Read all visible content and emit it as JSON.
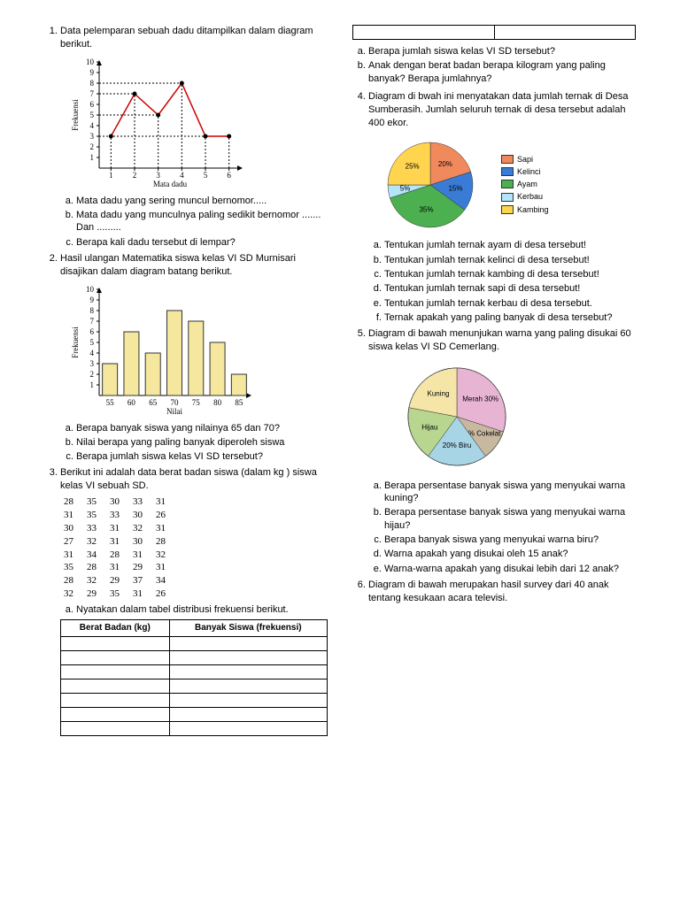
{
  "q1": {
    "text": "Data pelemparan sebuah dadu ditampilkan dalam diagram berikut.",
    "chart": {
      "type": "line",
      "xlabel": "Mata dadu",
      "ylabel": "Frekuensi",
      "xticks": [
        1,
        2,
        3,
        4,
        5,
        6
      ],
      "yticks": [
        1,
        2,
        3,
        4,
        5,
        6,
        7,
        8,
        9,
        10
      ],
      "ylim": [
        0,
        10
      ],
      "points": [
        [
          1,
          3
        ],
        [
          2,
          7
        ],
        [
          3,
          5
        ],
        [
          4,
          8
        ],
        [
          5,
          3
        ],
        [
          6,
          3
        ]
      ],
      "line_color": "#cc0000",
      "marker_color": "#000000",
      "grid_dash": true
    },
    "sub": {
      "a": "Mata dadu yang sering muncul bernomor.....",
      "b": "Mata dadu yang munculnya paling sedikit bernomor ....... Dan .........",
      "c": "Berapa kali dadu tersebut di lempar?"
    }
  },
  "q2": {
    "text": "Hasil ulangan Matematika siswa kelas VI SD Murnisari disajikan dalam diagram batang berikut.",
    "chart": {
      "type": "bar",
      "xlabel": "Nilai",
      "ylabel": "Frekuensi",
      "categories": [
        55,
        60,
        65,
        70,
        75,
        80,
        85
      ],
      "values": [
        3,
        6,
        4,
        8,
        7,
        5,
        2
      ],
      "ylim": [
        0,
        10
      ],
      "ytick_step": 1,
      "bar_color": "#f5e79e",
      "bar_border": "#333"
    },
    "sub": {
      "a": "Berapa banyak siswa yang nilainya 65 dan 70?",
      "b": "Nilai berapa yang paling banyak diperoleh siswa",
      "c": "Berapa jumlah siswa kelas VI SD tersebut?"
    }
  },
  "q3": {
    "text": "Berikut ini adalah data berat badan siswa (dalam kg ) siswa kelas VI sebuah SD.",
    "data_rows": [
      [
        28,
        35,
        30,
        33,
        31
      ],
      [
        31,
        35,
        33,
        30,
        26
      ],
      [
        30,
        33,
        31,
        32,
        31
      ],
      [
        27,
        32,
        31,
        30,
        28
      ],
      [
        31,
        34,
        28,
        31,
        32
      ],
      [
        35,
        28,
        31,
        29,
        31
      ],
      [
        28,
        32,
        29,
        37,
        34
      ],
      [
        32,
        29,
        35,
        31,
        26
      ]
    ],
    "sub_a": "Nyatakan dalam tabel distribusi frekuensi berikut.",
    "table_headers": {
      "c1": "Berat Badan (kg)",
      "c2": "Banyak Siswa (frekuensi)"
    },
    "empty_rows": 7,
    "cont_sub": {
      "a": "Berapa jumlah siswa kelas VI SD tersebut?",
      "b": "Anak dengan berat badan berapa kilogram yang paling banyak? Berapa jumlahnya?"
    }
  },
  "q4": {
    "text": "Diagram di bwah ini menyatakan data jumlah ternak di Desa Sumberasih. Jumlah seluruh ternak di desa tersebut adalah 400 ekor.",
    "pie": {
      "type": "pie",
      "slices": [
        {
          "label": "Sapi",
          "pct": 20,
          "color": "#f08a5d",
          "text": "20%"
        },
        {
          "label": "Kelinci",
          "pct": 15,
          "color": "#3a7bd5",
          "text": "15%"
        },
        {
          "label": "Ayam",
          "pct": 35,
          "color": "#4caf50",
          "text": "35%"
        },
        {
          "label": "Kerbau",
          "pct": 5,
          "color": "#b3e5fc",
          "text": "5%"
        },
        {
          "label": "Kambing",
          "pct": 25,
          "color": "#ffd54f",
          "text": "25%"
        }
      ],
      "legend": [
        {
          "label": "Sapi",
          "color": "#f08a5d"
        },
        {
          "label": "Kelinci",
          "color": "#3a7bd5"
        },
        {
          "label": "Ayam",
          "color": "#4caf50"
        },
        {
          "label": "Kerbau",
          "color": "#b3e5fc"
        },
        {
          "label": "Kambing",
          "color": "#ffd54f"
        }
      ]
    },
    "sub": {
      "a": "Tentukan jumlah ternak ayam di desa tersebut!",
      "b": "Tentukan jumlah ternak kelinci di desa tersebut!",
      "c": "Tentukan jumlah ternak kambing di desa tersebut!",
      "d": "Tentukan jumlah ternak sapi di desa tersebut!",
      "e": "Tentukan jumlah ternak kerbau di desa tersebut.",
      "f": "Ternak apakah yang paling banyak di desa tersebut?"
    }
  },
  "q5": {
    "text": "Diagram di bawah menunjukan warna yang paling disukai 60 siswa kelas VI SD Cemerlang.",
    "pie": {
      "type": "pie",
      "slices": [
        {
          "label": "Merah",
          "pct": 30,
          "color": "#e8b4d4",
          "text": "Merah 30%"
        },
        {
          "label": "Cokelat",
          "pct": 10,
          "color": "#c9b8a0",
          "text": "10% Cokelat"
        },
        {
          "label": "Biru",
          "pct": 20,
          "color": "#a8d5e5",
          "text": "20% Biru"
        },
        {
          "label": "Hijau",
          "pct": 18,
          "color": "#b8d68f",
          "text": "Hijau"
        },
        {
          "label": "Kuning",
          "pct": 22,
          "color": "#f5e6a8",
          "text": "Kuning"
        }
      ]
    },
    "sub": {
      "a": "Berapa persentase banyak siswa yang menyukai warna kuning?",
      "b": "Berapa persentase banyak siswa yang menyukai warna hijau?",
      "c": "Berapa banyak siswa yang menyukai warna biru?",
      "d": "Warna apakah yang disukai oleh 15 anak?",
      "e": "Warna-warna apakah yang disukai lebih dari 12 anak?"
    }
  },
  "q6": {
    "text": "Diagram di bawah merupakan hasil survey dari 40 anak tentang kesukaan acara televisi."
  }
}
